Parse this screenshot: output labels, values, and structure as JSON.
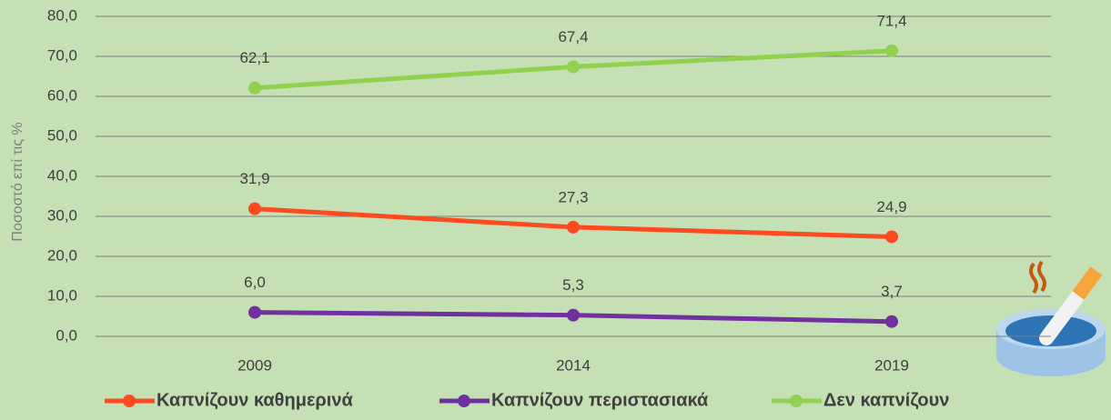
{
  "chart_data": {
    "type": "line",
    "y_label": "Ποσοστό επί τις %",
    "categories": [
      "2009",
      "2014",
      "2019"
    ],
    "series": [
      {
        "name": "Καπνίζουν καθημερινά",
        "color": "#ff4b1f",
        "values": [
          31.9,
          27.3,
          24.9
        ],
        "value_labels": [
          "31,9",
          "27,3",
          "24,9"
        ]
      },
      {
        "name": "Καπνίζουν περιστασιακά",
        "color": "#7030a0",
        "values": [
          6.0,
          5.3,
          3.7
        ],
        "value_labels": [
          "6,0",
          "5,3",
          "3,7"
        ]
      },
      {
        "name": "Δεν καπνίζουν",
        "color": "#92d050",
        "values": [
          62.1,
          67.4,
          71.4
        ],
        "value_labels": [
          "62,1",
          "67,4",
          "71,4"
        ]
      }
    ],
    "ylim": [
      0,
      80
    ],
    "yticks": [
      {
        "value": 0,
        "label": "0,0"
      },
      {
        "value": 10,
        "label": "10,0"
      },
      {
        "value": 20,
        "label": "20,0"
      },
      {
        "value": 30,
        "label": "30,0"
      },
      {
        "value": 40,
        "label": "40,0"
      },
      {
        "value": 50,
        "label": "50,0"
      },
      {
        "value": 60,
        "label": "60,0"
      },
      {
        "value": 70,
        "label": "70,0"
      },
      {
        "value": 80,
        "label": "80,0"
      }
    ],
    "grid": true,
    "legend": "bottom"
  }
}
